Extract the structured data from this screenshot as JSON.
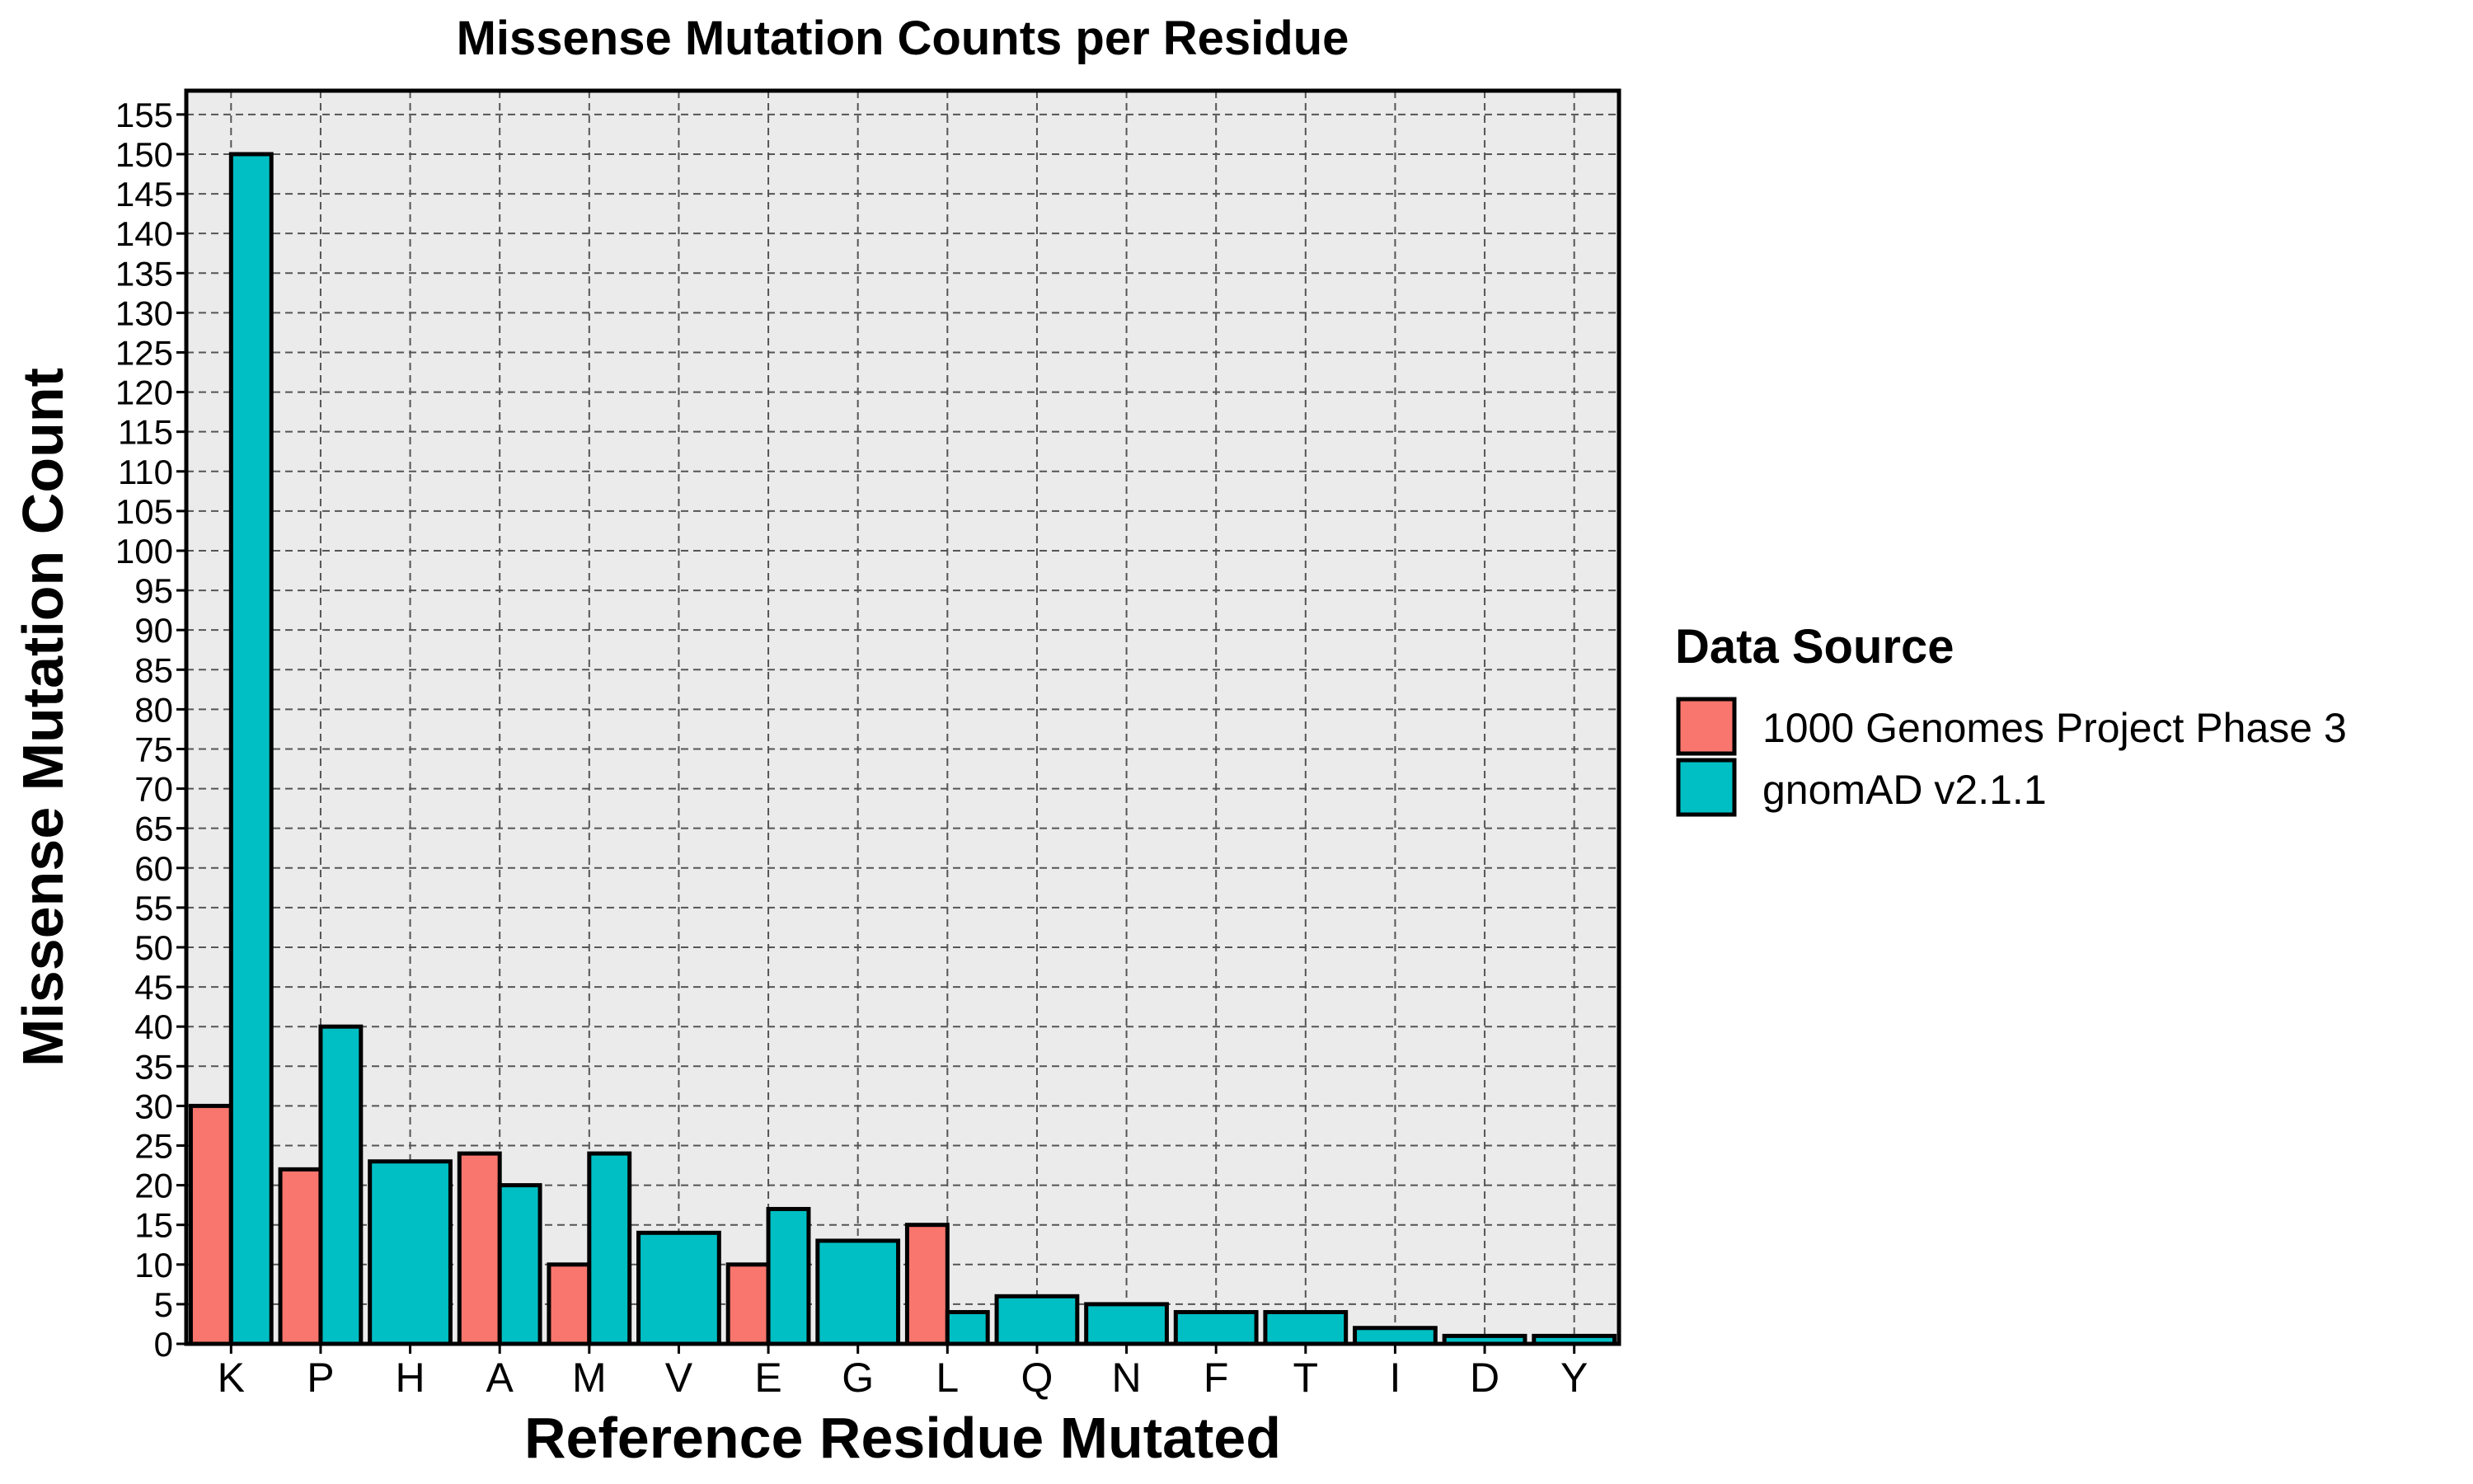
{
  "chart_data": {
    "type": "bar",
    "title": "Missense Mutation Counts per Residue",
    "xlabel": "Reference Residue Mutated",
    "ylabel": "Missense Mutation Count",
    "ylim": [
      0,
      158
    ],
    "yticks": [
      0,
      5,
      10,
      15,
      20,
      25,
      30,
      35,
      40,
      45,
      50,
      55,
      60,
      65,
      70,
      75,
      80,
      85,
      90,
      95,
      100,
      105,
      110,
      115,
      120,
      125,
      130,
      135,
      140,
      145,
      150,
      155
    ],
    "grid": true,
    "categories": [
      "K",
      "P",
      "H",
      "A",
      "M",
      "V",
      "E",
      "G",
      "L",
      "Q",
      "N",
      "F",
      "T",
      "I",
      "D",
      "Y"
    ],
    "series": [
      {
        "name": "1000 Genomes Project Phase 3",
        "color": "#F8766D",
        "values": [
          30,
          22,
          null,
          24,
          10,
          null,
          10,
          null,
          15,
          null,
          null,
          null,
          null,
          null,
          null,
          null
        ]
      },
      {
        "name": "gnomAD v2.1.1",
        "color": "#00BFC4",
        "values": [
          150,
          40,
          23,
          20,
          24,
          14,
          17,
          13,
          4,
          6,
          5,
          4,
          4,
          2,
          1,
          1
        ]
      }
    ],
    "legend": {
      "title": "Data Source",
      "position": "right"
    }
  }
}
